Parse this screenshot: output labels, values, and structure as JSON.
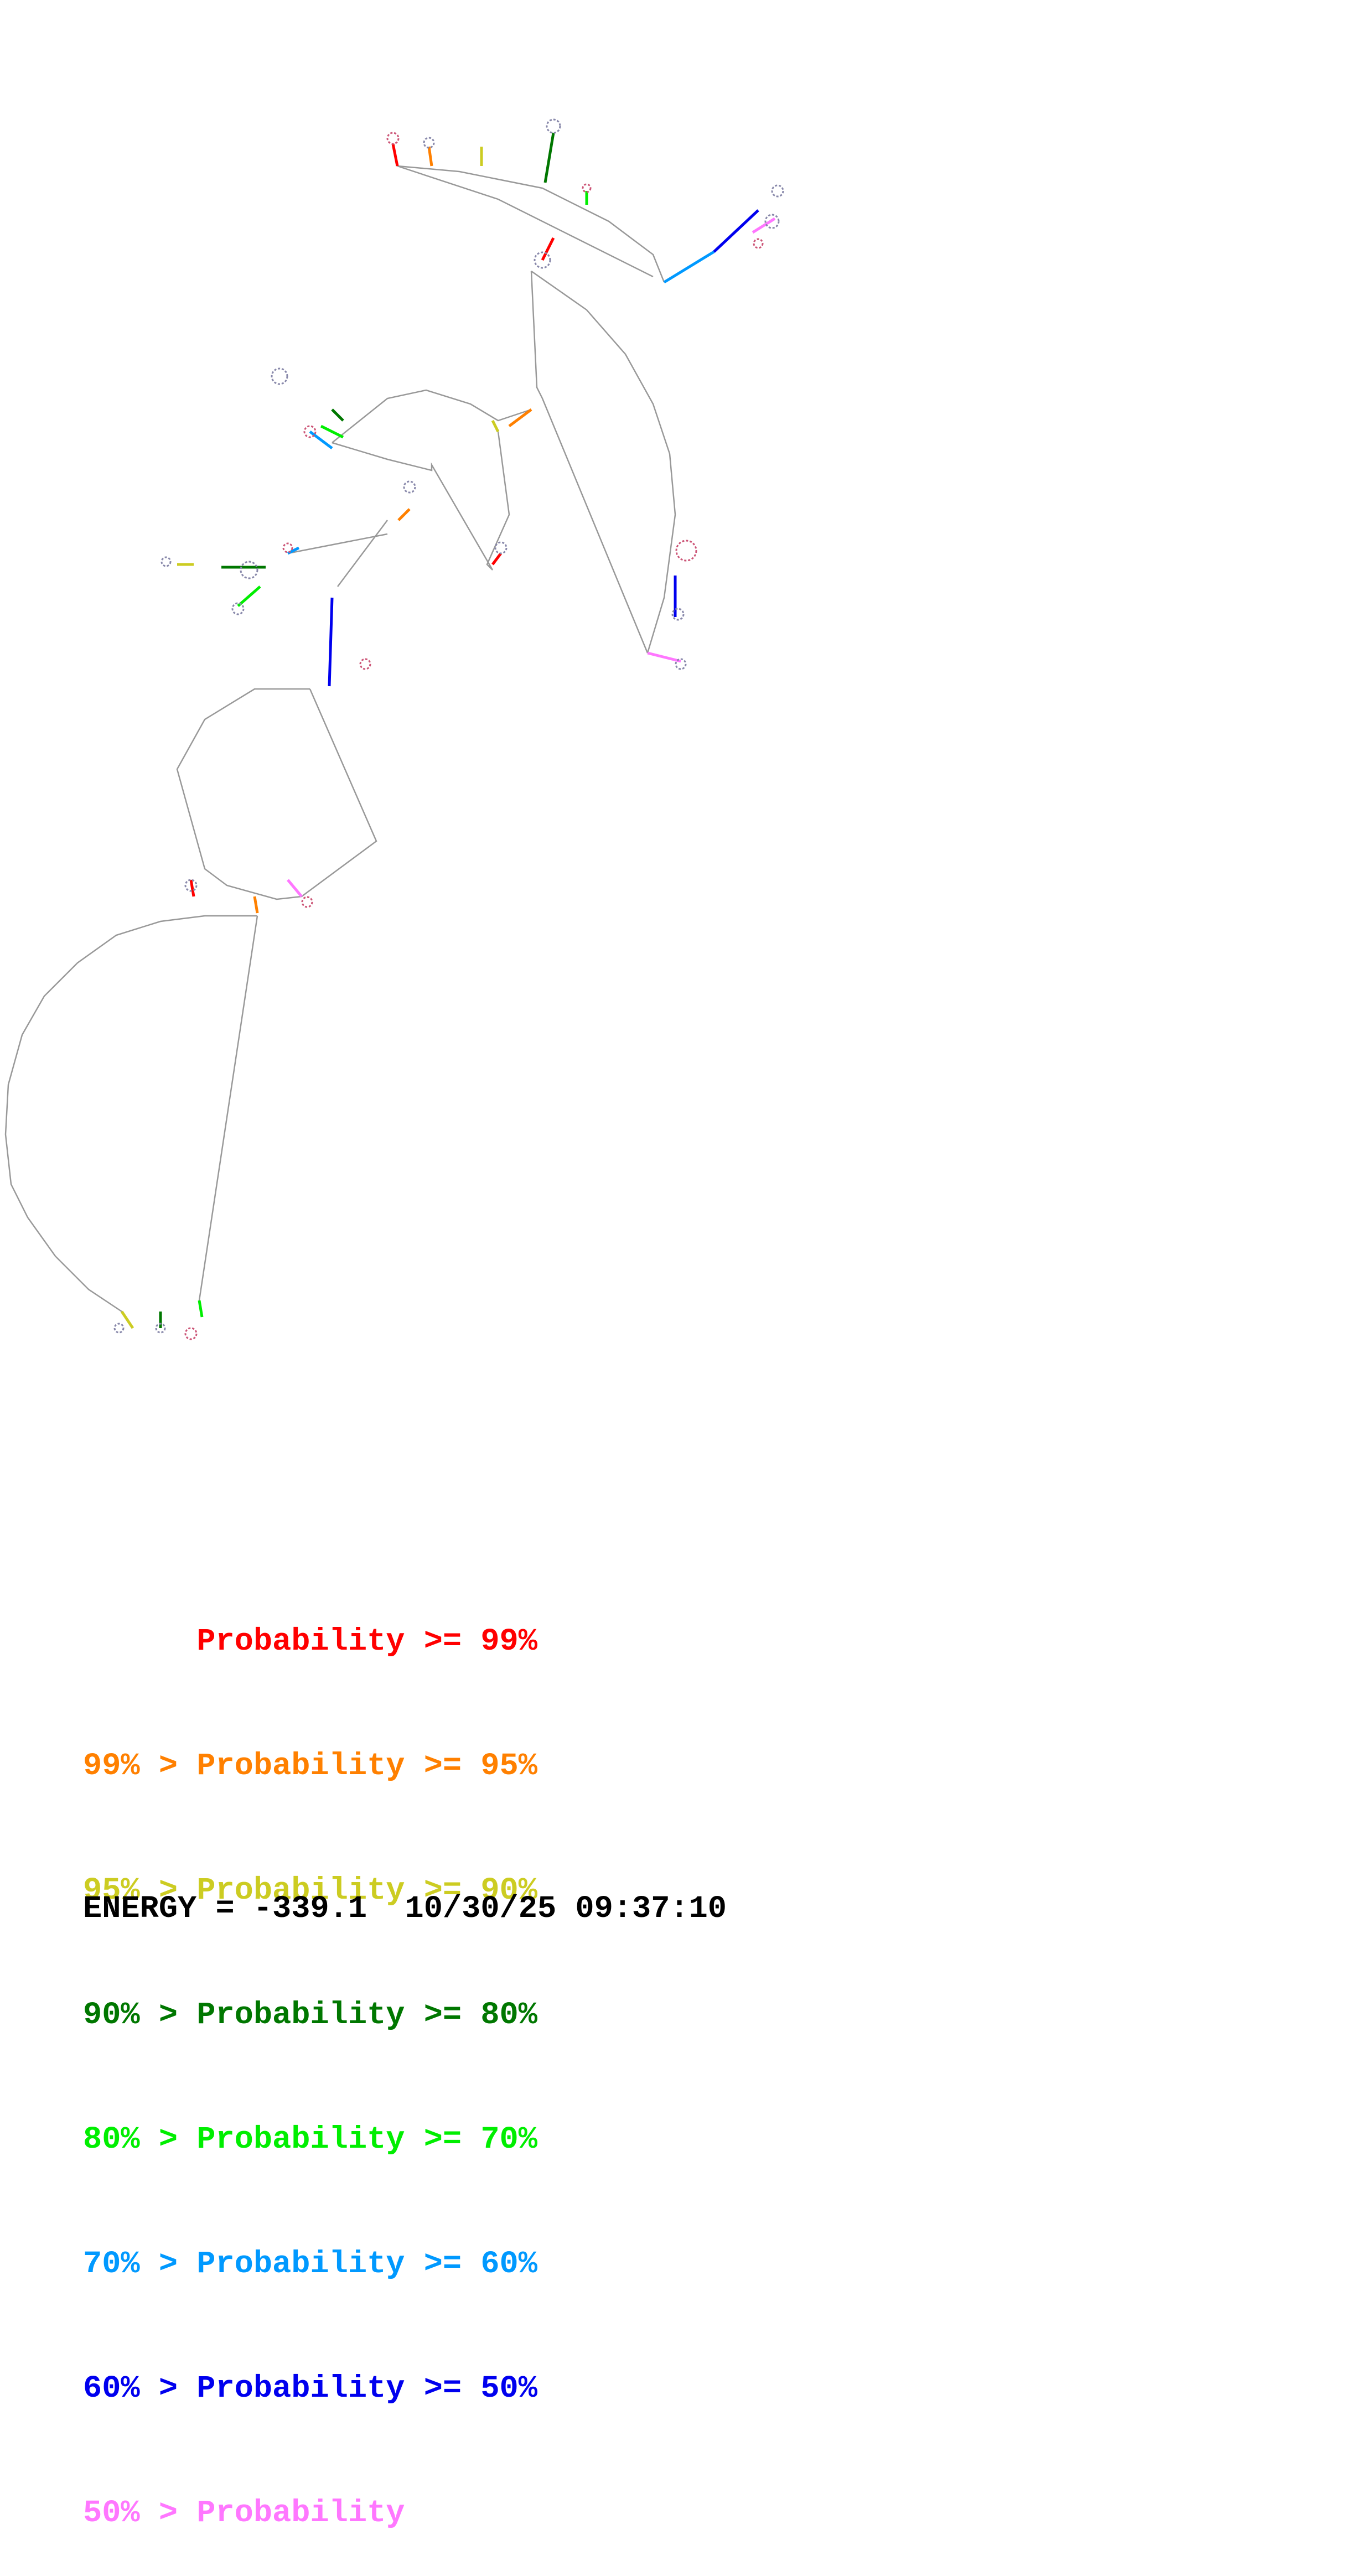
{
  "legend": {
    "entries": [
      {
        "text": "      Probability >= 99%",
        "color": "#ff0000"
      },
      {
        "text": "99% > Probability >= 95%",
        "color": "#ff8000"
      },
      {
        "text": "95% > Probability >= 90%",
        "color": "#cccc22"
      },
      {
        "text": "90% > Probability >= 80%",
        "color": "#007700"
      },
      {
        "text": "80% > Probability >= 70%",
        "color": "#00ee00"
      },
      {
        "text": "70% > Probability >= 60%",
        "color": "#0099ff"
      },
      {
        "text": "60% > Probability >= 50%",
        "color": "#0000ee"
      },
      {
        "text": "50% > Probability",
        "color": "#ff77ff"
      }
    ]
  },
  "footer": {
    "energy": "ENERGY = -339.1",
    "timestamp": "10/30/25 09:37:10"
  },
  "colors": {
    "backbone": "#999999",
    "base_outline": "#8888aa"
  }
}
